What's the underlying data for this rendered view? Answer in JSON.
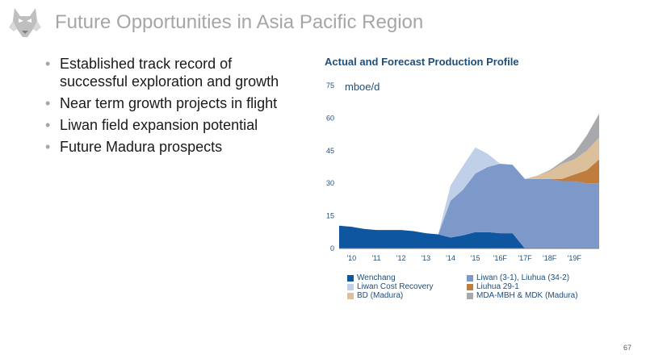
{
  "slide": {
    "title": "Future Opportunities in Asia Pacific Region",
    "bullets": [
      "Established track record of successful exploration and growth",
      "Near term growth projects in flight",
      "Liwan field expansion potential",
      "Future Madura prospects"
    ],
    "page_number": "67",
    "logo_icon": "husky-head-icon"
  },
  "chart_data": {
    "type": "area",
    "stacked": true,
    "title": "Actual and Forecast Production Profile",
    "ylabel": "mboe/d",
    "ylim": [
      0,
      75
    ],
    "yticks": [
      0,
      15,
      30,
      45,
      60,
      75
    ],
    "x_range": [
      2009.5,
      2020
    ],
    "x": [
      2009.5,
      2010,
      2010.5,
      2011,
      2011.5,
      2012,
      2012.5,
      2013,
      2013.5,
      2014,
      2014.5,
      2015,
      2015.5,
      2016,
      2016.5,
      2017,
      2017.5,
      2018,
      2018.5,
      2019,
      2019.5,
      2020
    ],
    "xtick_positions": [
      2010,
      2011,
      2012,
      2013,
      2014,
      2015,
      2016,
      2017,
      2018,
      2019
    ],
    "xtick_labels": [
      "'10",
      "'11",
      "'12",
      "'13",
      "'14",
      "'15",
      "'16F",
      "'17F",
      "'18F",
      "'19F"
    ],
    "grid": false,
    "legend_position": "bottom",
    "series": [
      {
        "name": "Wenchang",
        "color": "#0f56a0",
        "values": [
          10.5,
          10,
          9,
          8.5,
          8.5,
          8.5,
          8,
          7,
          6.5,
          5,
          6,
          7.5,
          7.5,
          7,
          7,
          0,
          0,
          0,
          0,
          0,
          0,
          0
        ]
      },
      {
        "name": "Liwan (3-1), Liuhua (34-2)",
        "color": "#7d99c9",
        "values": [
          0,
          0,
          0,
          0,
          0,
          0,
          0,
          0,
          0,
          17,
          21,
          27,
          30,
          32,
          31.5,
          32,
          32,
          32,
          31,
          31,
          30,
          30
        ]
      },
      {
        "name": "Liwan Cost Recovery",
        "color": "#bfd0e8",
        "values": [
          0,
          0,
          0,
          0,
          0,
          0,
          0,
          0,
          0,
          7,
          11,
          12,
          6,
          0,
          0,
          0,
          0,
          0,
          0,
          0,
          0,
          0
        ]
      },
      {
        "name": "Liuhua 29-1",
        "color": "#c07c3c",
        "values": [
          0,
          0,
          0,
          0,
          0,
          0,
          0,
          0,
          0,
          0,
          0,
          0,
          0,
          0,
          0,
          0,
          0,
          0,
          1,
          3,
          6,
          11
        ]
      },
      {
        "name": "BD (Madura)",
        "color": "#dcc09c",
        "values": [
          0,
          0,
          0,
          0,
          0,
          0,
          0,
          0,
          0,
          0,
          0,
          0,
          0,
          0,
          0,
          0,
          1.5,
          3.5,
          7,
          7,
          9,
          10
        ]
      },
      {
        "name": "MDA-MBH & MDK (Madura)",
        "color": "#a7a9ac",
        "values": [
          0,
          0,
          0,
          0,
          0,
          0,
          0,
          0,
          0,
          0,
          0,
          0,
          0,
          0,
          0,
          0,
          0,
          0.5,
          1,
          3,
          7,
          11
        ]
      }
    ]
  }
}
